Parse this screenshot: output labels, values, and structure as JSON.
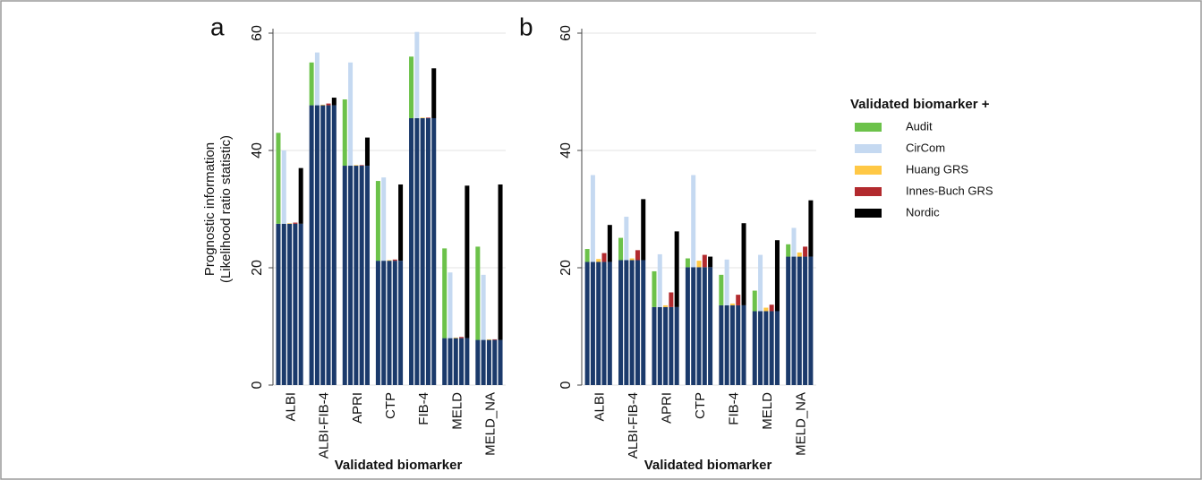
{
  "chart_data": [
    {
      "type": "bar",
      "label": "a",
      "ylabel": [
        "Prognostic information",
        "(Likelihood ratio statistic)"
      ],
      "xlabel": "Validated biomarker",
      "categories": [
        "ALBI",
        "ALBI-FIB-4",
        "APRI",
        "CTP",
        "FIB-4",
        "MELD",
        "MELD_NA"
      ],
      "base": {
        "color": "#1b3a6b",
        "values": [
          27.5,
          47.7,
          37.4,
          21.2,
          45.5,
          8,
          7.7
        ]
      },
      "series": [
        {
          "color": "#6cc24a",
          "values": [
            15.5,
            7.3,
            11.3,
            13.6,
            10.5,
            15.3,
            15.9
          ]
        },
        {
          "color": "#c5d9f1",
          "values": [
            12.5,
            9,
            17.6,
            14.2,
            14.7,
            11.2,
            11.1
          ]
        },
        {
          "color": "#ffc845",
          "values": [
            0.1,
            0.1,
            0.1,
            0.1,
            0.1,
            0.1,
            0.1
          ]
        },
        {
          "color": "#b22a2e",
          "values": [
            0.2,
            0.3,
            0.1,
            0.2,
            0.1,
            0.2,
            0.1
          ]
        },
        {
          "color": "#000000",
          "values": [
            9.5,
            1.3,
            4.8,
            13,
            8.5,
            26,
            26.5
          ]
        }
      ],
      "ylim": [
        0,
        60
      ],
      "yticks": [
        0,
        20,
        40,
        60
      ],
      "grid": true
    },
    {
      "type": "bar",
      "label": "b",
      "xlabel": "Validated biomarker",
      "legend_title": "Validated biomarker +",
      "categories": [
        "ALBI",
        "ALBI-FIB-4",
        "APRI",
        "CTP",
        "FIB-4",
        "MELD",
        "MELD_NA"
      ],
      "base": {
        "color": "#1b3a6b",
        "values": [
          21,
          21.3,
          13.3,
          20.1,
          13.6,
          12.6,
          21.9
        ]
      },
      "series": [
        {
          "name": "Audit",
          "color": "#6cc24a",
          "values": [
            2.2,
            3.8,
            6.1,
            1.5,
            5.2,
            3.5,
            2.1
          ]
        },
        {
          "name": "CirCom",
          "color": "#c5d9f1",
          "values": [
            14.8,
            7.4,
            9,
            15.7,
            7.8,
            9.6,
            4.9
          ]
        },
        {
          "name": "Huang GRS",
          "color": "#ffc845",
          "values": [
            0.5,
            0.3,
            0.3,
            1.1,
            0.3,
            0.6,
            0.7
          ]
        },
        {
          "name": "Innes-Buch GRS",
          "color": "#b22a2e",
          "values": [
            1.5,
            1.7,
            2.5,
            2.1,
            1.8,
            1.1,
            1.7
          ]
        },
        {
          "name": "Nordic",
          "color": "#000000",
          "values": [
            6.3,
            10.4,
            12.9,
            1.8,
            14,
            12.1,
            9.6
          ]
        }
      ],
      "ylim": [
        0,
        60
      ],
      "yticks": [
        0,
        20,
        40,
        60
      ],
      "grid": true
    }
  ]
}
